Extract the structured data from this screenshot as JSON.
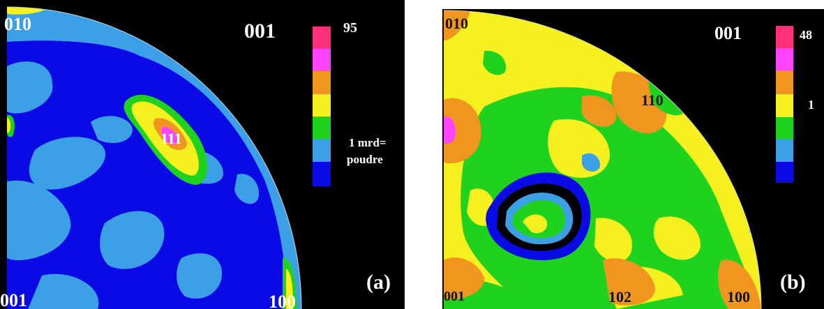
{
  "panel_a": {
    "tag": "(a)",
    "plane_label": "001",
    "scale_max": "95",
    "scale_mid": "1 mrd=",
    "scale_mid2": "poudre",
    "pole_labels": {
      "top_left": "010",
      "bottom_left": "001",
      "bottom_right": "100",
      "center": "111"
    }
  },
  "panel_b": {
    "tag": "(b)",
    "plane_label": "001",
    "scale_max": "48",
    "scale_mid": "1",
    "pole_labels": {
      "top_left": "010",
      "bottom_left": "001",
      "bottom_mid": "102",
      "bottom_right": "100",
      "mid_right": "110"
    }
  },
  "colors": {
    "scale": [
      "#ff2f7a",
      "#ff44ff",
      "#f0961e",
      "#f5f01e",
      "#1ed21e",
      "#3ca0e6",
      "#0a0ae6"
    ],
    "background": "#000000"
  }
}
